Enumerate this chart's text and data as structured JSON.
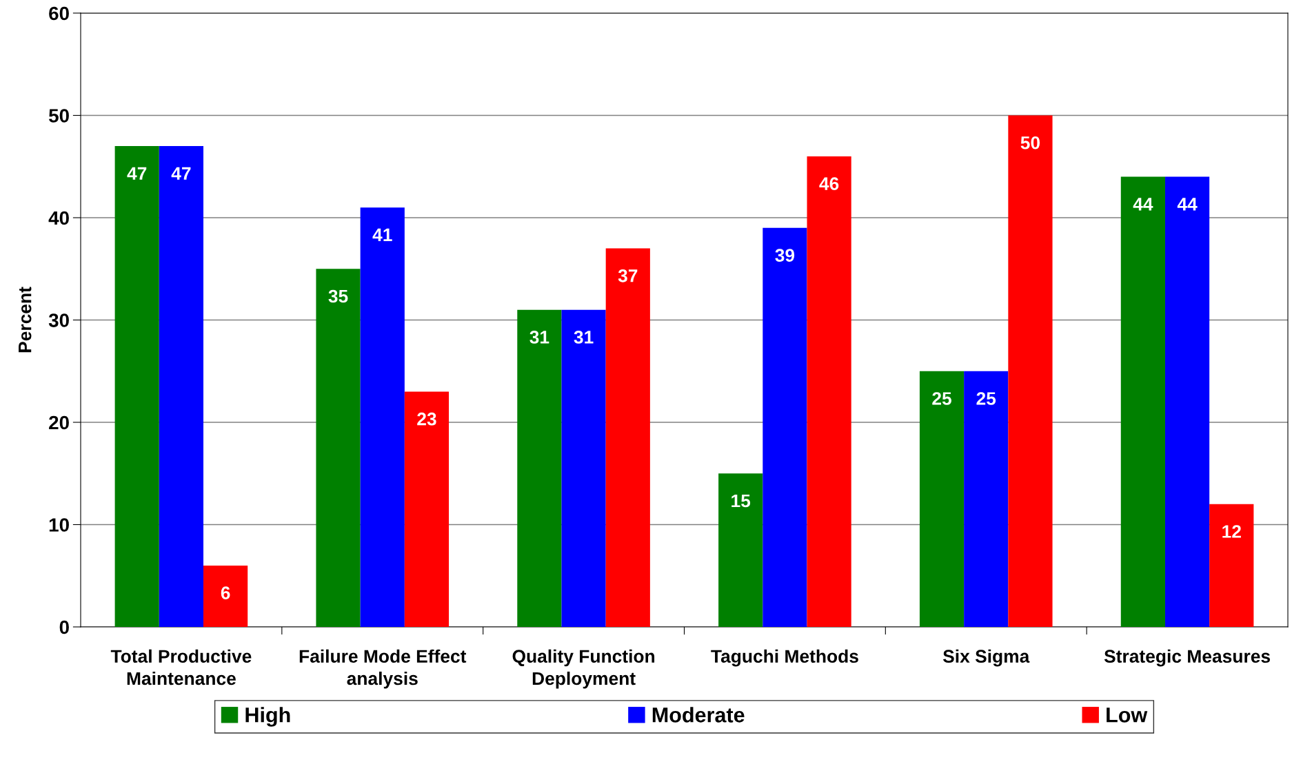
{
  "chart_data": {
    "type": "bar",
    "ylabel": "Percent",
    "categories": [
      "Total Productive\nMaintenance",
      "Failure Mode Effect\nanalysis",
      "Quality Function\nDeployment",
      "Taguchi Methods",
      "Six Sigma",
      "Strategic Measures"
    ],
    "series": [
      {
        "name": "High",
        "color": "#008000",
        "values": [
          47,
          35,
          31,
          15,
          25,
          44
        ]
      },
      {
        "name": "Moderate",
        "color": "#0000ff",
        "values": [
          47,
          41,
          31,
          39,
          25,
          44
        ]
      },
      {
        "name": "Low",
        "color": "#ff0000",
        "values": [
          6,
          23,
          37,
          46,
          50,
          12
        ]
      }
    ],
    "ylim": [
      0,
      60
    ],
    "yticks": [
      0,
      10,
      20,
      30,
      40,
      50,
      60
    ],
    "grid": "y",
    "legend": "bottom",
    "data_labels": true
  }
}
